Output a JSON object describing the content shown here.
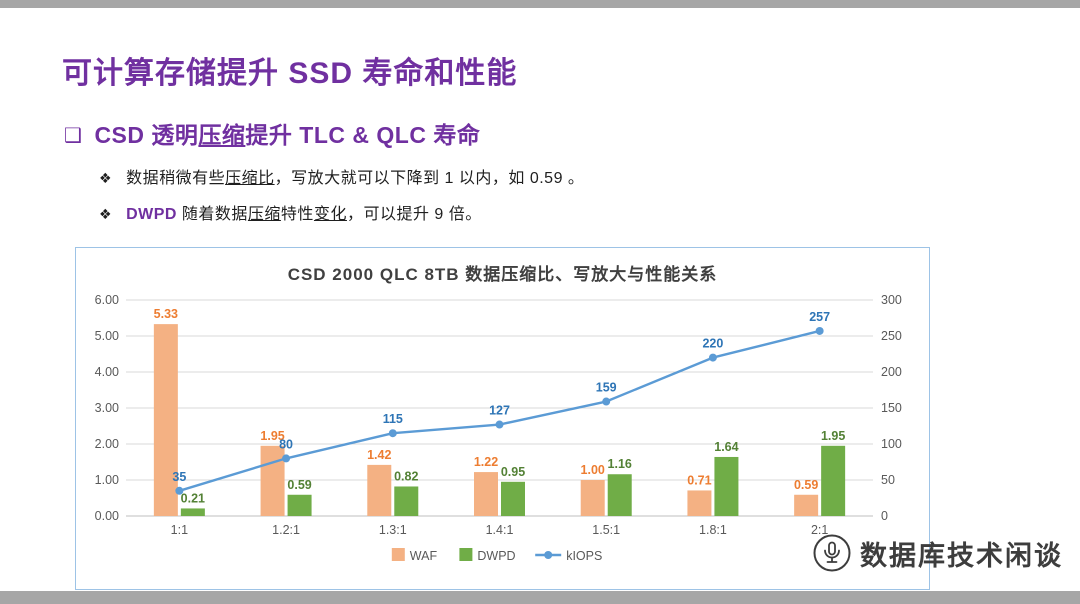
{
  "page": {
    "title": "可计算存储提升 SSD 寿命和性能"
  },
  "heading": {
    "bullet": "❑",
    "segments": [
      {
        "text": "CSD 透明"
      },
      {
        "text": "压缩",
        "underline": true
      },
      {
        "text": "提升 TLC & QLC 寿命"
      }
    ]
  },
  "points": [
    {
      "bullet": "❖",
      "segments": [
        {
          "text": "数据稍微有些"
        },
        {
          "text": "压缩比",
          "underline": true
        },
        {
          "text": "，写放大就可以下降到 1 以内，如 0.59 。"
        }
      ]
    },
    {
      "bullet": "❖",
      "segments": [
        {
          "text": "DWPD",
          "color": "#7030A0",
          "bold": true
        },
        {
          "text": " 随着数据"
        },
        {
          "text": "压缩",
          "underline": true
        },
        {
          "text": "特性"
        },
        {
          "text": "变化",
          "underline": true
        },
        {
          "text": "，可以提升 9 倍。"
        }
      ]
    }
  ],
  "watermark": {
    "text": "数据库技术闲谈"
  },
  "chart_data": {
    "type": "bar",
    "title": "CSD 2000 QLC 8TB 数据压缩比、写放大与性能关系",
    "categories": [
      "1:1",
      "1.2:1",
      "1.3:1",
      "1.4:1",
      "1.5:1",
      "1.8:1",
      "2:1"
    ],
    "y_left": {
      "min": 0,
      "max": 6,
      "step": 1
    },
    "y_right": {
      "min": 0,
      "max": 300,
      "step": 50
    },
    "grid": true,
    "legend_position": "bottom",
    "colors": {
      "grid": "#D9D9D9",
      "axis_text": "#595959",
      "border": "#9DC3E6"
    },
    "series": [
      {
        "name": "WAF",
        "type": "bar",
        "axis": "left",
        "color": "#F4B183",
        "label_color": "#ED7D31",
        "values": [
          5.33,
          1.95,
          1.42,
          1.22,
          1.0,
          0.71,
          0.59
        ],
        "labels": [
          "5.33",
          "1.95",
          "1.42",
          "1.22",
          "1.00",
          "0.71",
          "0.59"
        ]
      },
      {
        "name": "DWPD",
        "type": "bar",
        "axis": "left",
        "color": "#70AD47",
        "label_color": "#538135",
        "values": [
          0.21,
          0.59,
          0.82,
          0.95,
          1.16,
          1.64,
          1.95
        ],
        "labels": [
          "0.21",
          "0.59",
          "0.82",
          "0.95",
          "1.16",
          "1.64",
          "1.95"
        ]
      },
      {
        "name": "kIOPS",
        "type": "line",
        "axis": "right",
        "color": "#5B9BD5",
        "label_color": "#2E75B6",
        "values": [
          35,
          80,
          115,
          127,
          159,
          220,
          257
        ],
        "labels": [
          "35",
          "80",
          "115",
          "127",
          "159",
          "220",
          "257"
        ]
      }
    ]
  }
}
